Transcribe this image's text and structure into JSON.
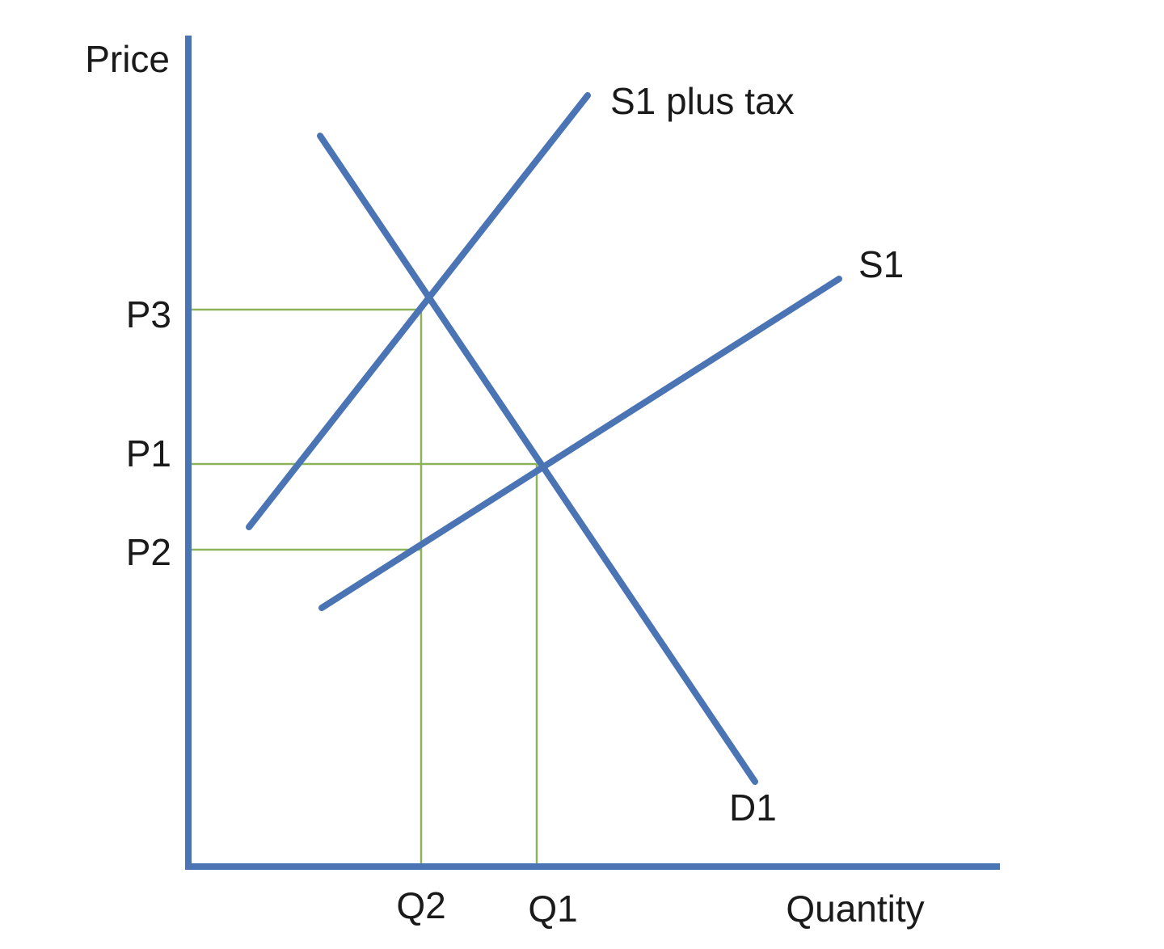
{
  "diagram": {
    "axes": {
      "y_label": "Price",
      "x_label": "Quantity"
    },
    "price_labels": {
      "p3": "P3",
      "p1": "P1",
      "p2": "P2"
    },
    "quantity_labels": {
      "q2": "Q2",
      "q1": "Q1"
    },
    "curves": {
      "supply_plus_tax": "S1 plus tax",
      "supply": "S1",
      "demand": "D1"
    },
    "colors": {
      "curves": "#4a74b4",
      "guides": "#8cb35a",
      "text": "#1a1a1a"
    }
  }
}
